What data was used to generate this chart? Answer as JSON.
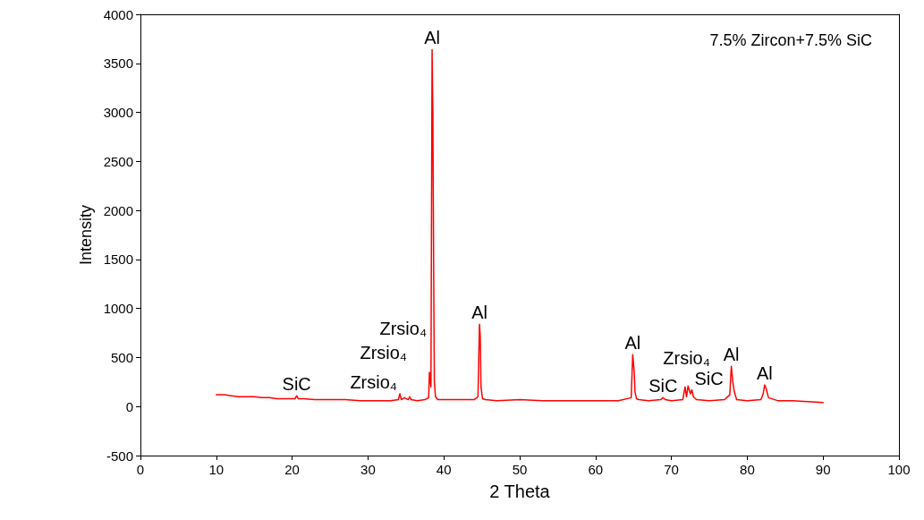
{
  "chart_data": {
    "type": "line",
    "xlabel": "2 Theta",
    "ylabel": "Intensity",
    "xlim": [
      0,
      100
    ],
    "xticks": [
      0,
      10,
      20,
      30,
      40,
      50,
      60,
      70,
      80,
      90,
      100
    ],
    "ylim": [
      -500,
      4000
    ],
    "yticks": [
      -500,
      0,
      500,
      1000,
      1500,
      2000,
      2500,
      3000,
      3500,
      4000
    ],
    "grid": false,
    "marker": "none",
    "line_style": "solid",
    "series": [
      {
        "color": "#ff0000",
        "x": [
          10,
          11,
          12,
          13,
          14,
          15,
          16,
          17,
          18,
          19,
          20,
          20.4,
          20.6,
          20.8,
          21.5,
          23,
          25,
          27,
          29,
          31,
          33,
          34,
          34.2,
          34.4,
          34.8,
          35.3,
          35.5,
          35.7,
          36.5,
          37.5,
          38,
          38.1,
          38.3,
          38.45,
          38.55,
          38.65,
          38.75,
          38.9,
          39.2,
          40,
          42,
          44,
          44.5,
          44.7,
          44.8,
          44.9,
          45.1,
          45.5,
          47,
          50,
          53,
          56,
          60,
          63,
          64.7,
          64.9,
          65.1,
          65.2,
          65.4,
          65.7,
          67,
          68.6,
          68.9,
          69.2,
          70,
          71.5,
          71.8,
          72,
          72.2,
          72.5,
          72.7,
          72.9,
          73.3,
          75,
          77,
          77.7,
          77.9,
          78.1,
          78.3,
          78.6,
          80,
          81.8,
          82.1,
          82.3,
          82.5,
          82.8,
          84,
          86,
          88,
          90
        ],
        "values": [
          120,
          120,
          110,
          100,
          100,
          100,
          90,
          90,
          80,
          80,
          80,
          80,
          110,
          80,
          80,
          70,
          70,
          70,
          60,
          60,
          60,
          70,
          130,
          70,
          90,
          70,
          100,
          70,
          60,
          70,
          90,
          350,
          200,
          3640,
          3000,
          1500,
          250,
          100,
          70,
          70,
          70,
          70,
          100,
          840,
          720,
          200,
          80,
          70,
          60,
          70,
          60,
          60,
          60,
          60,
          90,
          530,
          350,
          150,
          80,
          70,
          60,
          70,
          90,
          70,
          60,
          70,
          200,
          100,
          210,
          130,
          170,
          100,
          70,
          60,
          70,
          120,
          410,
          250,
          150,
          70,
          60,
          70,
          130,
          220,
          180,
          90,
          60,
          60,
          50,
          40
        ]
      }
    ],
    "annotations": [
      {
        "text": "Al",
        "x": 38.45,
        "y": 3640
      },
      {
        "text": "Zrsio₄",
        "x": 34.2,
        "y": 130
      },
      {
        "text": "Zrsio₄",
        "x": 35.5,
        "y": 100
      },
      {
        "text": "Zrsio₄",
        "x": 38.1,
        "y": 350
      },
      {
        "text": "SiC",
        "x": 20.6,
        "y": 110
      },
      {
        "text": "Al",
        "x": 44.7,
        "y": 840
      },
      {
        "text": "Al",
        "x": 64.9,
        "y": 530
      },
      {
        "text": "SiC",
        "x": 68.9,
        "y": 90
      },
      {
        "text": "SiC",
        "x": 72.7,
        "y": 170
      },
      {
        "text": "Zrsio₄",
        "x": 72,
        "y": 210
      },
      {
        "text": "Al",
        "x": 77.9,
        "y": 410
      },
      {
        "text": "Al",
        "x": 82.3,
        "y": 220
      },
      "7.5% Zircon+7.5% SiC"
    ]
  }
}
